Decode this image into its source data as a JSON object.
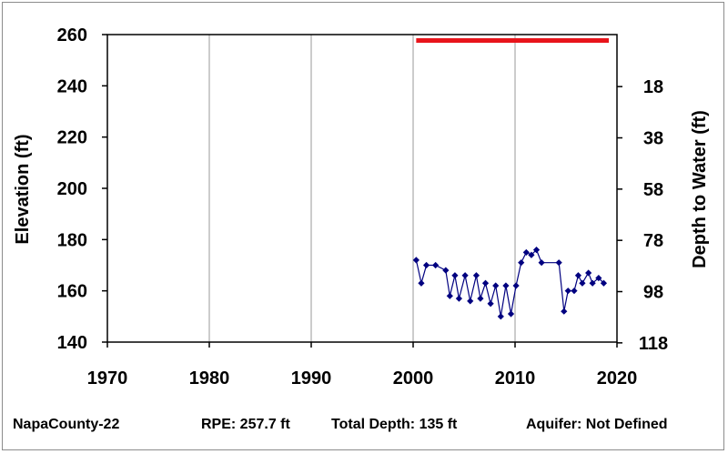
{
  "footer": {
    "well_name": "NapaCounty-22",
    "rpe": "RPE: 257.7 ft",
    "total_depth": "Total Depth: 135 ft",
    "aquifer": "Aquifer: Not Defined"
  },
  "chart_data": {
    "type": "line",
    "title": "",
    "xlabel": "",
    "ylabel": "Elevation (ft)",
    "y2label": "Depth to Water (ft)",
    "xlim": [
      1970,
      2020
    ],
    "ylim": [
      140,
      260
    ],
    "x_ticks": [
      1970,
      1980,
      1990,
      2000,
      2010,
      2020
    ],
    "y_ticks": [
      140,
      160,
      180,
      200,
      220,
      240,
      260
    ],
    "y2_ticks": [
      18,
      38,
      58,
      78,
      98,
      118
    ],
    "grid": "vertical",
    "reference_line": {
      "name": "RPE",
      "value": 257.7,
      "x_start": 2000.3,
      "x_end": 2019.2,
      "color": "#e8141b"
    },
    "series": [
      {
        "color": "#000080",
        "points": [
          [
            2000.3,
            172
          ],
          [
            2000.8,
            163
          ],
          [
            2001.3,
            170
          ],
          [
            2002.2,
            170
          ],
          [
            2003.2,
            168
          ],
          [
            2003.6,
            158
          ],
          [
            2004.1,
            166
          ],
          [
            2004.5,
            157
          ],
          [
            2005.1,
            166
          ],
          [
            2005.6,
            156
          ],
          [
            2006.2,
            166
          ],
          [
            2006.6,
            157
          ],
          [
            2007.1,
            163
          ],
          [
            2007.6,
            155
          ],
          [
            2008.1,
            162
          ],
          [
            2008.6,
            150
          ],
          [
            2009.1,
            162
          ],
          [
            2009.6,
            151
          ],
          [
            2010.1,
            162
          ],
          [
            2010.6,
            171
          ],
          [
            2011.1,
            175
          ],
          [
            2011.6,
            174
          ],
          [
            2012.1,
            176
          ],
          [
            2012.6,
            171
          ],
          [
            2014.3,
            171
          ],
          [
            2014.8,
            152
          ],
          [
            2015.2,
            160
          ],
          [
            2015.8,
            160
          ],
          [
            2016.2,
            166
          ],
          [
            2016.6,
            163
          ],
          [
            2017.2,
            167
          ],
          [
            2017.6,
            163
          ],
          [
            2018.2,
            165
          ],
          [
            2018.7,
            163
          ]
        ]
      }
    ]
  }
}
